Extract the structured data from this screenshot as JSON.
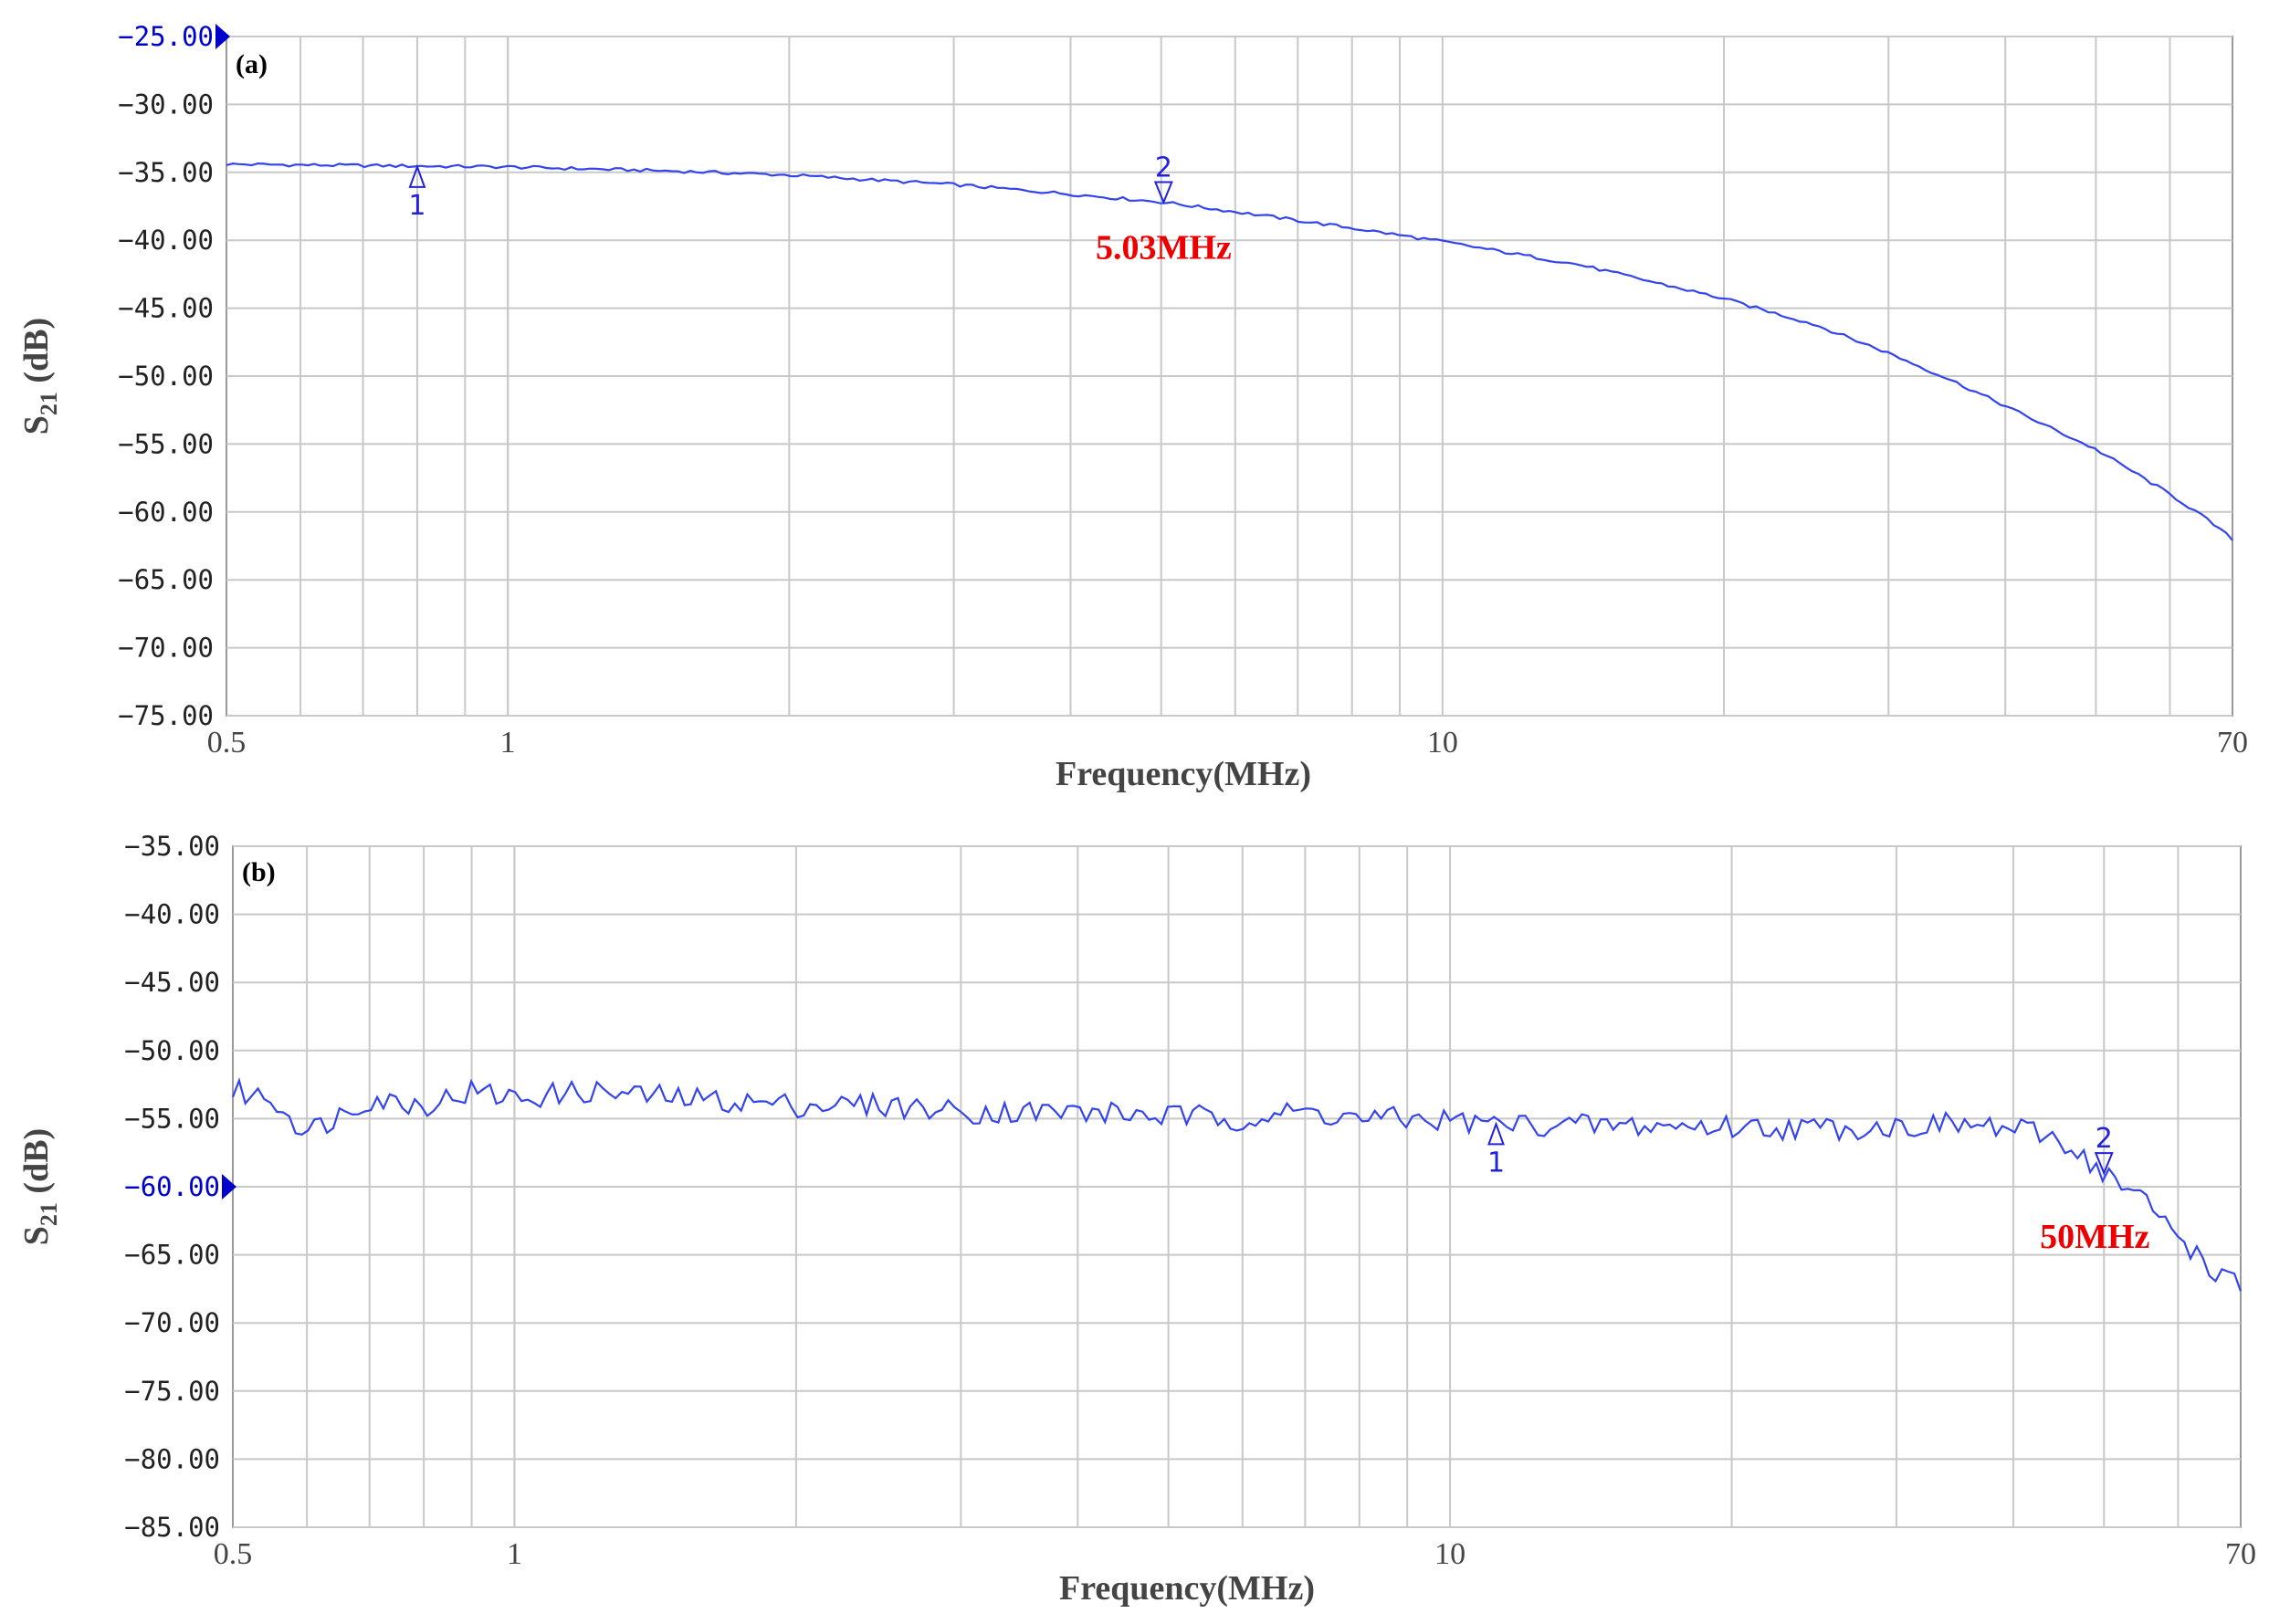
{
  "colors": {
    "trace": "#3344ee",
    "grid": "#c8c8c8",
    "annotation": "#ee0000",
    "reference": "#0000cc",
    "marker": "#2222dd"
  },
  "chart_data": [
    {
      "panel": "(a)",
      "type": "line",
      "scale_x": "log",
      "grid": true,
      "xlabel": "Frequency(MHz)",
      "ylabel": "S21 (dB)",
      "ylabel_main": "S",
      "ylabel_sub": "21",
      "ylabel_unit": " (dB)",
      "xlim": [
        0.5,
        70
      ],
      "ylim": [
        -75,
        -25
      ],
      "xticks": [
        "0.5",
        "1",
        "10",
        "70"
      ],
      "xtick_values": [
        0.5,
        1,
        10,
        70
      ],
      "yticks": [
        "-25.00",
        "-30.00",
        "-35.00",
        "-40.00",
        "-45.00",
        "-50.00",
        "-55.00",
        "-60.00",
        "-65.00",
        "-70.00",
        "-75.00"
      ],
      "ytick_values": [
        -25,
        -30,
        -35,
        -40,
        -45,
        -50,
        -55,
        -60,
        -65,
        -70,
        -75
      ],
      "reference_level": -25,
      "noise_amp": 0.12,
      "series": [
        {
          "x": [
            0.5,
            0.7,
            1,
            1.5,
            2,
            3,
            4,
            5.03,
            6,
            8,
            10,
            14,
            20,
            25,
            30,
            35,
            40,
            45,
            50,
            55,
            60,
            65,
            70
          ],
          "y": [
            -34.4,
            -34.5,
            -34.6,
            -34.9,
            -35.2,
            -35.9,
            -36.6,
            -37.2,
            -37.9,
            -39.1,
            -40.1,
            -41.8,
            -44.3,
            -46.2,
            -48.3,
            -50.3,
            -52.2,
            -53.9,
            -55.4,
            -57.1,
            -58.7,
            -60.3,
            -62.0
          ]
        }
      ],
      "markers": [
        {
          "label": "1",
          "x": 0.8,
          "y": -34.6,
          "direction": "up"
        },
        {
          "label": "2",
          "x": 5.03,
          "y": -37.2,
          "direction": "down",
          "annotation": "5.03MHz"
        }
      ]
    },
    {
      "panel": "(b)",
      "type": "line",
      "scale_x": "log",
      "grid": true,
      "xlabel": "Frequency(MHz)",
      "ylabel": "S21 (dB)",
      "ylabel_main": "S",
      "ylabel_sub": "21",
      "ylabel_unit": " (dB)",
      "xlim": [
        0.5,
        70
      ],
      "ylim": [
        -85,
        -35
      ],
      "xticks": [
        "0.5",
        "1",
        "10",
        "70"
      ],
      "xtick_values": [
        0.5,
        1,
        10,
        70
      ],
      "yticks": [
        "-35.00",
        "-40.00",
        "-45.00",
        "-50.00",
        "-55.00",
        "-60.00",
        "-65.00",
        "-70.00",
        "-75.00",
        "-80.00",
        "-85.00"
      ],
      "ytick_values": [
        -35,
        -40,
        -45,
        -50,
        -55,
        -60,
        -65,
        -70,
        -75,
        -80,
        -85
      ],
      "reference_level": -60,
      "noise_amp": 0.9,
      "series": [
        {
          "x": [
            0.5,
            0.55,
            0.6,
            0.7,
            0.8,
            0.9,
            1,
            1.2,
            1.5,
            2,
            2.5,
            3,
            4,
            5,
            6,
            7,
            8,
            10,
            11,
            14,
            20,
            25,
            30,
            35,
            40,
            45,
            50,
            55,
            60,
            65,
            70
          ],
          "y": [
            -53.0,
            -53.5,
            -56.0,
            -53.5,
            -54.0,
            -53.0,
            -53.5,
            -53.0,
            -53.5,
            -54.0,
            -54.0,
            -54.5,
            -54.5,
            -54.8,
            -55.0,
            -54.5,
            -55.0,
            -55.1,
            -55.4,
            -55.5,
            -55.6,
            -55.7,
            -55.6,
            -55.4,
            -55.8,
            -56.5,
            -59.0,
            -61.0,
            -63.5,
            -66.0,
            -67.5
          ]
        }
      ],
      "markers": [
        {
          "label": "1",
          "x": 11.2,
          "y": -55.4,
          "direction": "up"
        },
        {
          "label": "2",
          "x": 50,
          "y": -59.0,
          "direction": "down",
          "annotation": "50MHz"
        }
      ]
    }
  ]
}
